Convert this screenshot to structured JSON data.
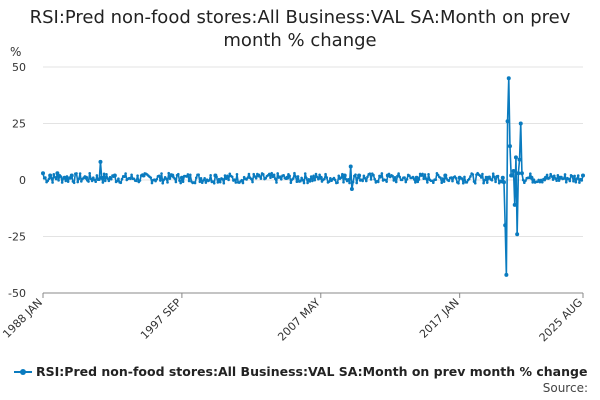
{
  "chart_data": {
    "type": "line",
    "title": "RSI:Pred non-food stores:All Business:VAL SA:Month on prev month % change",
    "ylabel": "%",
    "xlabel": "",
    "ylim": [
      -50,
      50
    ],
    "y_ticks": [
      50,
      25,
      0,
      -25,
      -50
    ],
    "x_tick_labels": [
      "1988 JAN",
      "1997 SEP",
      "2007 MAY",
      "2017 JAN",
      "2025 AUG"
    ],
    "x_range": [
      "1988 JAN",
      "2025 AUG"
    ],
    "grid": true,
    "legend_position": "bottom-left",
    "series": [
      {
        "name": "RSI:Pred non-food stores:All Business:VAL SA:Month on prev month % change",
        "color": "#0a7bbf",
        "points": [
          [
            "1988 JAN",
            3
          ],
          [
            "1988 JUL",
            2
          ],
          [
            "1989 JAN",
            3
          ],
          [
            "1989 JUL",
            1
          ],
          [
            "1990 JAN",
            2
          ],
          [
            "1991 JAN",
            1
          ],
          [
            "1992 JAN",
            8
          ],
          [
            "1992 FEB",
            1
          ],
          [
            "1993 JAN",
            2
          ],
          [
            "1995 JAN",
            2
          ],
          [
            "1997 JAN",
            2
          ],
          [
            "1997 SEP",
            1
          ],
          [
            "2000 JAN",
            2
          ],
          [
            "2003 JAN",
            2
          ],
          [
            "2005 JAN",
            1
          ],
          [
            "2007 MAY",
            1
          ],
          [
            "2009 JAN",
            2
          ],
          [
            "2009 JUN",
            6
          ],
          [
            "2009 JUL",
            -4
          ],
          [
            "2010 JAN",
            2
          ],
          [
            "2012 JAN",
            2
          ],
          [
            "2014 JAN",
            1
          ],
          [
            "2016 JAN",
            2
          ],
          [
            "2017 JAN",
            1
          ],
          [
            "2019 JAN",
            1
          ],
          [
            "2020 JAN",
            1
          ],
          [
            "2020 FEB",
            -1
          ],
          [
            "2020 MAR",
            -20
          ],
          [
            "2020 APR",
            -42
          ],
          [
            "2020 MAY",
            26
          ],
          [
            "2020 JUN",
            45
          ],
          [
            "2020 JUL",
            15
          ],
          [
            "2020 AUG",
            2
          ],
          [
            "2020 SEP",
            2
          ],
          [
            "2020 OCT",
            4
          ],
          [
            "2020 NOV",
            -11
          ],
          [
            "2020 DEC",
            10
          ],
          [
            "2021 JAN",
            -24
          ],
          [
            "2021 FEB",
            3
          ],
          [
            "2021 MAR",
            9
          ],
          [
            "2021 APR",
            25
          ],
          [
            "2021 MAY",
            3
          ],
          [
            "2022 JAN",
            1
          ],
          [
            "2023 JAN",
            1
          ],
          [
            "2024 JAN",
            1
          ],
          [
            "2025 AUG",
            2
          ]
        ]
      }
    ]
  },
  "legend": {
    "label": "RSI:Pred non-food stores:All Business:VAL SA:Month on prev month % change"
  },
  "source_label": "Source:"
}
